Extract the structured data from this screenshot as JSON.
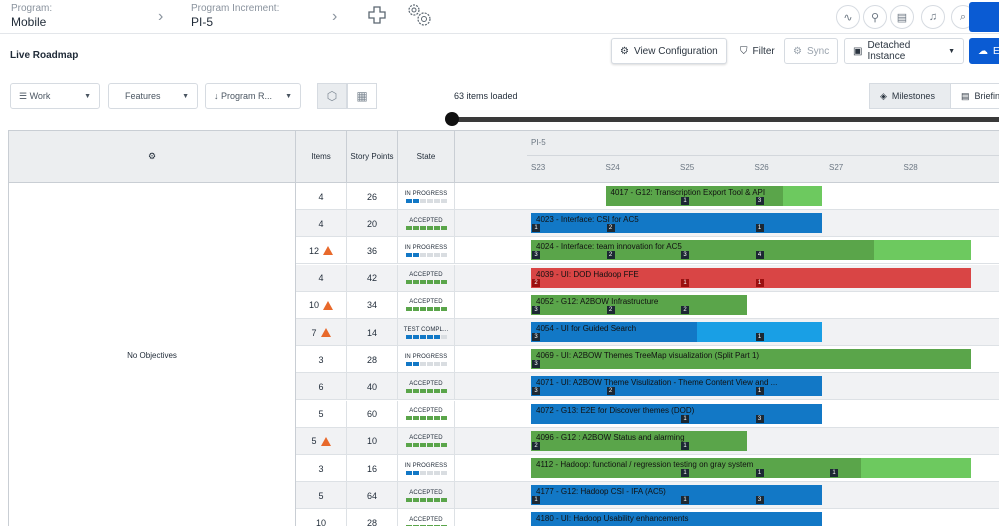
{
  "header": {
    "program_label": "Program:",
    "program_value": "Mobile",
    "pi_label": "Program Increment:",
    "pi_value": "PI-5"
  },
  "toolbar": {
    "page_title": "Live Roadmap",
    "view_config": "View Configuration",
    "filter": "Filter",
    "sync": "Sync",
    "detached": "Detached Instance",
    "export": "Ex"
  },
  "filters": {
    "work": "Work",
    "features": "Features",
    "program_r": "Program R...",
    "loaded": "63 items loaded",
    "milestones": "Milestones",
    "briefing": "Briefing"
  },
  "grid": {
    "col_items": "Items",
    "col_story_points": "Story Points",
    "col_state": "State",
    "objectives": "No Objectives",
    "pi": "PI-5",
    "sprints": [
      "S23",
      "S24",
      "S25",
      "S26",
      "S27",
      "S28"
    ]
  },
  "colors": {
    "green": "#5aa54a",
    "light_green": "#6dc95f",
    "blue": "#1278c6",
    "light_blue": "#199fe5",
    "red": "#d94545",
    "warning": "#e8692b"
  },
  "rows": [
    {
      "items": "4",
      "warn": false,
      "sp": "26",
      "state": "IN PROGRESS",
      "state_fill": 0.25,
      "state_color": "blue",
      "bar_label": "4017 - G12: Transcription Export Tool & API",
      "color": "green",
      "progress": 0.82,
      "start": 1,
      "end": 3.9,
      "badges": [
        {
          "text": "1",
          "pos": 2
        },
        {
          "text": "3",
          "pos": 3
        }
      ]
    },
    {
      "items": "4",
      "warn": false,
      "sp": "20",
      "state": "ACCEPTED",
      "state_fill": 1,
      "state_color": "green",
      "bar_label": "4023 - Interface: CSI for AC5",
      "color": "blue",
      "progress": 1,
      "start": 0,
      "end": 3.9,
      "badges": [
        {
          "text": "1",
          "pos": 0
        },
        {
          "text": "2",
          "pos": 1
        },
        {
          "text": "1",
          "pos": 3
        }
      ]
    },
    {
      "items": "12",
      "warn": true,
      "sp": "36",
      "state": "IN PROGRESS",
      "state_fill": 0.33,
      "state_color": "blue",
      "bar_label": "4024 - Interface: team innovation for AC5",
      "color": "green",
      "progress": 0.78,
      "start": 0,
      "end": 5.9,
      "badges": [
        {
          "text": "3",
          "pos": 0
        },
        {
          "text": "2",
          "pos": 1
        },
        {
          "text": "3",
          "pos": 2
        },
        {
          "text": "4",
          "pos": 3
        }
      ]
    },
    {
      "items": "4",
      "warn": false,
      "sp": "42",
      "state": "ACCEPTED",
      "state_fill": 1,
      "state_color": "green",
      "bar_label": "4039 - UI: DOD Hadoop FFE",
      "color": "red",
      "progress": 1,
      "start": 0,
      "end": 5.9,
      "badges": [
        {
          "text": "2",
          "pos": 0
        },
        {
          "text": "1",
          "pos": 2
        },
        {
          "text": "1",
          "pos": 3
        }
      ]
    },
    {
      "items": "10",
      "warn": true,
      "sp": "34",
      "state": "ACCEPTED",
      "state_fill": 1,
      "state_color": "green",
      "bar_label": "4052 - G12: A2BOW Infrastructure",
      "color": "green",
      "progress": 1,
      "start": 0,
      "end": 2.9,
      "badges": [
        {
          "text": "3",
          "pos": 0
        },
        {
          "text": "2",
          "pos": 1
        },
        {
          "text": "2",
          "pos": 2
        }
      ]
    },
    {
      "items": "7",
      "warn": true,
      "sp": "14",
      "state": "TEST COMPL...",
      "state_fill": 0.8,
      "state_color": "blue",
      "bar_label": "4054 - UI for Guided Search",
      "color": "blue",
      "progress": 0.57,
      "start": 0,
      "end": 3.9,
      "badges": [
        {
          "text": "3",
          "pos": 0
        },
        {
          "text": "1",
          "pos": 3
        }
      ]
    },
    {
      "items": "3",
      "warn": false,
      "sp": "28",
      "state": "IN PROGRESS",
      "state_fill": 0.25,
      "state_color": "blue",
      "bar_label": "4069 - UI: A2BOW Themes TreeMap visualization (Split Part 1)",
      "color": "green",
      "progress": 1,
      "start": 0,
      "end": 5.9,
      "badges": [
        {
          "text": "3",
          "pos": 0
        }
      ]
    },
    {
      "items": "6",
      "warn": false,
      "sp": "40",
      "state": "ACCEPTED",
      "state_fill": 1,
      "state_color": "green",
      "bar_label": "4071 - UI: A2BOW Theme Visulization - Theme Content View and ...",
      "color": "blue",
      "progress": 1,
      "start": 0,
      "end": 3.9,
      "badges": [
        {
          "text": "3",
          "pos": 0
        },
        {
          "text": "2",
          "pos": 1
        },
        {
          "text": "1",
          "pos": 3
        }
      ]
    },
    {
      "items": "5",
      "warn": false,
      "sp": "60",
      "state": "ACCEPTED",
      "state_fill": 1,
      "state_color": "green",
      "bar_label": "4072 - G13: E2E for Discover themes (DOD)",
      "color": "blue",
      "progress": 1,
      "start": 0,
      "end": 3.9,
      "badges": [
        {
          "text": "1",
          "pos": 2
        },
        {
          "text": "3",
          "pos": 3
        }
      ]
    },
    {
      "items": "5",
      "warn": true,
      "sp": "10",
      "state": "ACCEPTED",
      "state_fill": 1,
      "state_color": "green",
      "bar_label": "4096 - G12 : A2BOW Status and alarming",
      "color": "green",
      "progress": 1,
      "start": 0,
      "end": 2.9,
      "badges": [
        {
          "text": "2",
          "pos": 0
        },
        {
          "text": "1",
          "pos": 2
        }
      ]
    },
    {
      "items": "3",
      "warn": false,
      "sp": "16",
      "state": "IN PROGRESS",
      "state_fill": 0.33,
      "state_color": "blue",
      "bar_label": "4112 - Hadoop: functional / regression testing on gray system",
      "color": "green",
      "progress": 0.75,
      "start": 0,
      "end": 5.9,
      "badges": [
        {
          "text": "1",
          "pos": 2
        },
        {
          "text": "1",
          "pos": 3
        },
        {
          "text": "1",
          "pos": 4
        }
      ]
    },
    {
      "items": "5",
      "warn": false,
      "sp": "64",
      "state": "ACCEPTED",
      "state_fill": 1,
      "state_color": "green",
      "bar_label": "4177 - G12: Hadoop CSI - IFA (AC5)",
      "color": "blue",
      "progress": 1,
      "start": 0,
      "end": 3.9,
      "badges": [
        {
          "text": "1",
          "pos": 0
        },
        {
          "text": "1",
          "pos": 2
        },
        {
          "text": "3",
          "pos": 3
        }
      ]
    },
    {
      "items": "10",
      "warn": false,
      "sp": "28",
      "state": "ACCEPTED",
      "state_fill": 1,
      "state_color": "green",
      "bar_label": "4180 - UI: Hadoop Usability enhancements",
      "color": "blue",
      "progress": 1,
      "start": 0,
      "end": 3.9,
      "badges": []
    }
  ]
}
